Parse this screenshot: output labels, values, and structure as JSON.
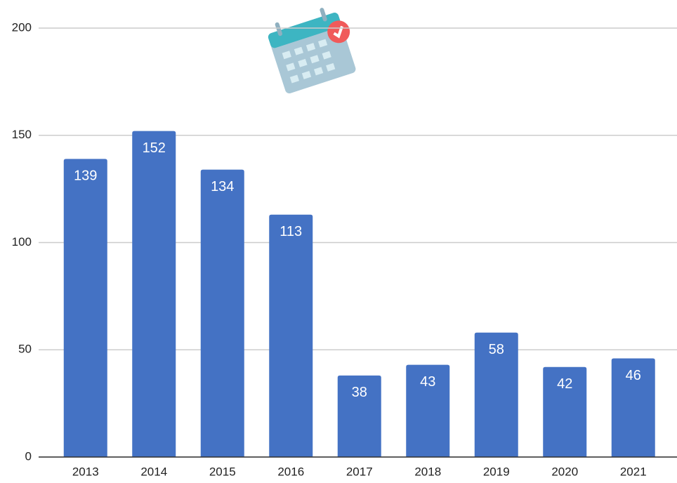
{
  "chart_data": {
    "type": "bar",
    "categories": [
      "2013",
      "2014",
      "2015",
      "2016",
      "2017",
      "2018",
      "2019",
      "2020",
      "2021"
    ],
    "values": [
      139,
      152,
      134,
      113,
      38,
      43,
      58,
      42,
      46
    ],
    "color": "#4472c4",
    "ylim": [
      0,
      200
    ],
    "yticks": [
      0,
      50,
      100,
      150,
      200
    ],
    "grid": true
  }
}
